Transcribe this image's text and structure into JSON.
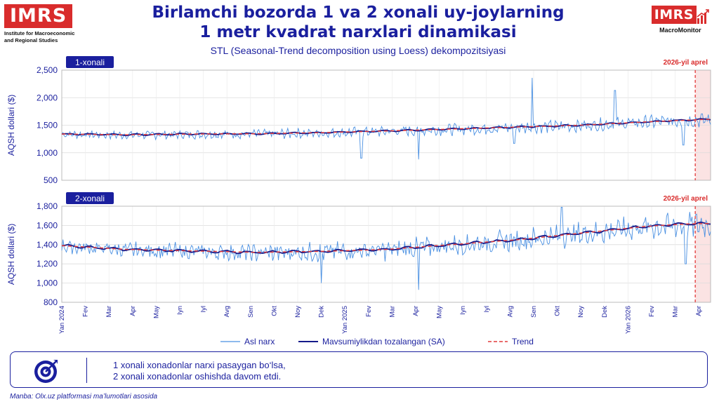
{
  "header": {
    "logo_left": "IMRS",
    "logo_left_sub_line1": "Institute for Macroeconomic",
    "logo_left_sub_line2": "and Regional Studies",
    "title_line1": "Birlamchi bozorda 1 va 2 xonali uy-joylarning",
    "title_line2": "1 metr kvadrat narxlari dinamikasi",
    "subtitle": "STL (Seasonal-Trend decomposition using Loess) dekompozitsiyasi",
    "logo_right": "IMRS",
    "logo_right_sub": "MacroMonitor"
  },
  "colors": {
    "raw": "#4a90e2",
    "sa": "#151a8a",
    "trend": "#e23b3b",
    "accent": "#1a1f9e",
    "shade": "#fbe3e3"
  },
  "chart_data": [
    {
      "type": "line",
      "label": "1-xonali",
      "ylabel": "AQSH dollari ($)",
      "ylim": [
        500,
        2500
      ],
      "yticks": [
        500,
        1000,
        1500,
        2000,
        2500
      ],
      "ytick_labels": [
        "500",
        "1,000",
        "1,500",
        "2,000",
        "2,500"
      ],
      "annotation": "2026-yil aprel",
      "series": [
        {
          "name": "Asl narx",
          "role": "raw"
        },
        {
          "name": "Mavsumiylikdan tozalangan (SA)",
          "role": "sa"
        },
        {
          "name": "Trend",
          "role": "trend"
        }
      ],
      "trend_points": [
        [
          0,
          1340
        ],
        [
          0.1,
          1325
        ],
        [
          0.2,
          1340
        ],
        [
          0.3,
          1345
        ],
        [
          0.4,
          1365
        ],
        [
          0.5,
          1395
        ],
        [
          0.6,
          1430
        ],
        [
          0.7,
          1465
        ],
        [
          0.8,
          1500
        ],
        [
          0.9,
          1560
        ],
        [
          1.0,
          1610
        ]
      ],
      "raw_spikes": [
        [
          0.725,
          2360
        ],
        [
          0.852,
          2130
        ],
        [
          0.462,
          900
        ],
        [
          0.55,
          880
        ],
        [
          0.698,
          1170
        ],
        [
          0.958,
          1140
        ]
      ],
      "raw_amplitude": 150
    },
    {
      "type": "line",
      "label": "2-xonali",
      "ylabel": "AQSH dollari ($)",
      "ylim": [
        800,
        1800
      ],
      "yticks": [
        800,
        1000,
        1200,
        1400,
        1600,
        1800
      ],
      "ytick_labels": [
        "800",
        "1,000",
        "1,200",
        "1,400",
        "1,600",
        "1,800"
      ],
      "annotation": "2026-yil aprel",
      "series": [
        {
          "name": "Asl narx",
          "role": "raw"
        },
        {
          "name": "Mavsumiylikdan tozalangan (SA)",
          "role": "sa"
        },
        {
          "name": "Trend",
          "role": "trend"
        }
      ],
      "trend_points": [
        [
          0,
          1390
        ],
        [
          0.1,
          1350
        ],
        [
          0.2,
          1335
        ],
        [
          0.3,
          1320
        ],
        [
          0.4,
          1330
        ],
        [
          0.5,
          1350
        ],
        [
          0.6,
          1400
        ],
        [
          0.7,
          1450
        ],
        [
          0.8,
          1520
        ],
        [
          0.9,
          1590
        ],
        [
          0.96,
          1615
        ],
        [
          1.0,
          1620
        ]
      ],
      "raw_spikes": [
        [
          0.77,
          1790
        ],
        [
          0.55,
          930
        ],
        [
          0.962,
          1200
        ],
        [
          0.4,
          1000
        ]
      ],
      "raw_amplitude": 160
    }
  ],
  "x_axis": {
    "labels": [
      "Yan 2024",
      "Fev",
      "Mar",
      "Apr",
      "May",
      "Iyn",
      "Iyl",
      "Avg",
      "Sen",
      "Okt",
      "Noy",
      "Dek",
      "Yan 2025",
      "Fev",
      "Mar",
      "Apr",
      "May",
      "Iyn",
      "Iyl",
      "Avg",
      "Sen",
      "Okt",
      "Noy",
      "Dek",
      "Yan 2026",
      "Fev",
      "Mar",
      "Apr"
    ],
    "shaded_from_index": 26.85
  },
  "legend": {
    "raw": "Asl narx",
    "sa": "Mavsumiylikdan tozalangan (SA)",
    "trend": "Trend"
  },
  "note": {
    "line1": "1 xonali xonadonlar narxi pasaygan bo‘lsa,",
    "line2": "2 xonali xonadonlar oshishda davom etdi."
  },
  "source": "Manba: Olx.uz platformasi ma’lumotlari asosida"
}
